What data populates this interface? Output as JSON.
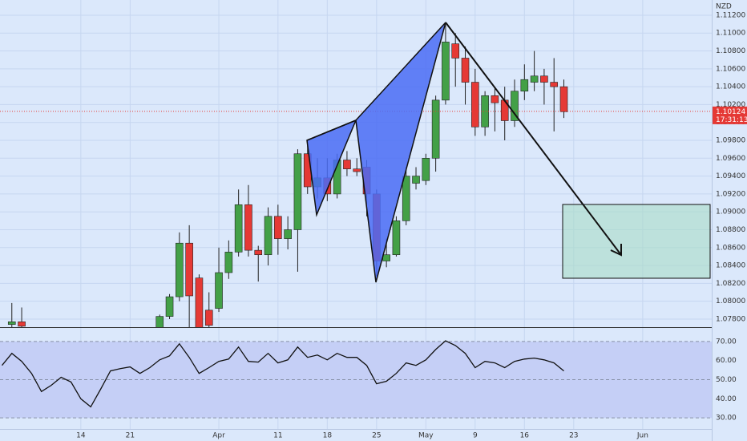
{
  "chart_data": [
    {
      "type": "candlestick",
      "currency": "NZD",
      "x": [
        -7,
        -6,
        8,
        9,
        10,
        11,
        12,
        13,
        14,
        15,
        16,
        17,
        18,
        19,
        20,
        21,
        22,
        23,
        24,
        25,
        26,
        27,
        28,
        29,
        30,
        31,
        32,
        33,
        34,
        35,
        36,
        37,
        38,
        39,
        40,
        41,
        42,
        43,
        44,
        45,
        46,
        47,
        48,
        49
      ],
      "open": [
        1.0774,
        1.0777,
        1.0765,
        1.0783,
        1.0805,
        1.0865,
        1.0826,
        1.079,
        1.0792,
        1.0832,
        1.0855,
        1.0908,
        1.0857,
        1.0852,
        1.0895,
        1.087,
        1.088,
        1.0965,
        1.0928,
        1.0938,
        1.092,
        1.0958,
        1.0948,
        1.095,
        1.092,
        1.0845,
        1.0852,
        1.089,
        1.0932,
        1.0935,
        1.096,
        1.1025,
        1.1088,
        1.1072,
        1.1045,
        1.0995,
        1.103,
        1.1025,
        1.1002,
        1.1035,
        1.1045,
        1.1052,
        1.1045,
        1.104
      ],
      "high": [
        1.0798,
        1.0793,
        1.0785,
        1.0808,
        1.0877,
        1.0885,
        1.083,
        1.081,
        1.086,
        1.0868,
        1.0925,
        1.093,
        1.0862,
        1.0905,
        1.0908,
        1.0895,
        1.097,
        1.098,
        1.096,
        1.096,
        1.0965,
        1.0968,
        1.096,
        1.0958,
        1.0925,
        1.087,
        1.0895,
        1.095,
        1.095,
        1.0965,
        1.103,
        1.111,
        1.11,
        1.1085,
        1.106,
        1.1035,
        1.104,
        1.104,
        1.1048,
        1.1065,
        1.108,
        1.106,
        1.1072,
        1.1048
      ],
      "low": [
        1.077,
        1.0768,
        1.076,
        1.078,
        1.08,
        1.077,
        1.0765,
        1.0765,
        1.0788,
        1.0825,
        1.085,
        1.085,
        1.0822,
        1.084,
        1.0852,
        1.0858,
        1.0833,
        1.092,
        1.0915,
        1.0912,
        1.0915,
        1.094,
        1.094,
        1.0895,
        1.0828,
        1.0838,
        1.085,
        1.0885,
        1.0925,
        1.093,
        1.0945,
        1.102,
        1.104,
        1.102,
        1.0985,
        1.0985,
        1.099,
        1.098,
        1.0995,
        1.1025,
        1.1035,
        1.102,
        1.099,
        1.1005
      ],
      "close": [
        1.0777,
        1.0772,
        1.0783,
        1.0805,
        1.0865,
        1.0806,
        1.077,
        1.0773,
        1.0832,
        1.0855,
        1.0908,
        1.0857,
        1.0852,
        1.0895,
        1.087,
        1.088,
        1.0965,
        1.0928,
        1.0938,
        1.092,
        1.0958,
        1.0948,
        1.0945,
        1.092,
        1.0845,
        1.0852,
        1.089,
        1.094,
        1.094,
        1.096,
        1.1025,
        1.109,
        1.1072,
        1.1045,
        1.0995,
        1.103,
        1.1022,
        1.1002,
        1.1035,
        1.1048,
        1.1052,
        1.1045,
        1.104,
        1.1012
      ],
      "up_color": "#43a047",
      "down_color": "#e53935",
      "xlim": [
        -8.2,
        64
      ],
      "ylim": [
        1.0771,
        1.1137
      ],
      "yticks": [
        {
          "value": 1.078,
          "label": "1.07800"
        },
        {
          "value": 1.08,
          "label": "1.08000"
        },
        {
          "value": 1.082,
          "label": "1.08200"
        },
        {
          "value": 1.084,
          "label": "1.08400"
        },
        {
          "value": 1.086,
          "label": "1.08600"
        },
        {
          "value": 1.088,
          "label": "1.08800"
        },
        {
          "value": 1.09,
          "label": "1.09000"
        },
        {
          "value": 1.092,
          "label": "1.09200"
        },
        {
          "value": 1.094,
          "label": "1.09400"
        },
        {
          "value": 1.096,
          "label": "1.09600"
        },
        {
          "value": 1.098,
          "label": "1.09800"
        },
        {
          "value": 1.1,
          "label": "1.10000"
        },
        {
          "value": 1.102,
          "label": "1.10200"
        },
        {
          "value": 1.104,
          "label": "1.10400"
        },
        {
          "value": 1.106,
          "label": "1.10600"
        },
        {
          "value": 1.108,
          "label": "1.10800"
        },
        {
          "value": 1.11,
          "label": "1.11000"
        },
        {
          "value": 1.112,
          "label": "1.11200"
        }
      ],
      "last_price": {
        "value": 1.10124,
        "label": "1.10124"
      },
      "countdown": "17:31:13"
    },
    {
      "type": "line",
      "color": "#111111",
      "x": [
        -8,
        -7,
        -6,
        -5,
        -4,
        -3,
        -2,
        -1,
        0,
        1,
        2,
        3,
        4,
        5,
        6,
        7,
        8,
        9,
        10,
        11,
        12,
        13,
        14,
        15,
        16,
        17,
        18,
        19,
        20,
        21,
        22,
        23,
        24,
        25,
        26,
        27,
        28,
        29,
        30,
        31,
        32,
        33,
        34,
        35,
        36,
        37,
        38,
        39,
        40,
        41,
        42,
        43,
        44,
        45,
        46,
        47,
        48,
        49
      ],
      "values": [
        57.5,
        63.8,
        59.6,
        53.3,
        43.8,
        47.1,
        51.3,
        48.8,
        40,
        35.8,
        45,
        54.6,
        55.8,
        56.7,
        53.3,
        56.3,
        60.4,
        62.5,
        68.8,
        61.7,
        53.3,
        56.3,
        59.6,
        60.8,
        67.1,
        59.6,
        59.2,
        63.8,
        58.8,
        60.4,
        67.1,
        61.7,
        62.9,
        60.4,
        63.8,
        61.7,
        61.7,
        57.5,
        47.9,
        49.2,
        53.3,
        58.8,
        57.5,
        60.4,
        65.8,
        70.4,
        67.9,
        63.8,
        56.3,
        59.6,
        58.8,
        56.3,
        59.6,
        60.8,
        61.3,
        60.4,
        58.8,
        54.6
      ],
      "xlim": [
        -8.2,
        64
      ],
      "ylim": [
        24.2,
        77.1
      ],
      "yticks": [
        {
          "value": 30,
          "label": "30.00"
        },
        {
          "value": 40,
          "label": "40.00"
        },
        {
          "value": 50,
          "label": "50.00"
        },
        {
          "value": 60,
          "label": "60.00"
        },
        {
          "value": 70,
          "label": "70.00"
        }
      ],
      "levels": [
        30,
        50,
        70
      ],
      "xticks": [
        {
          "value": 0,
          "label": "14"
        },
        {
          "value": 5,
          "label": "21"
        },
        {
          "value": 14,
          "label": "Apr"
        },
        {
          "value": 20,
          "label": "11"
        },
        {
          "value": 25,
          "label": "18"
        },
        {
          "value": 30,
          "label": "25"
        },
        {
          "value": 35,
          "label": "May"
        },
        {
          "value": 40,
          "label": "9"
        },
        {
          "value": 45,
          "label": "16"
        },
        {
          "value": 50,
          "label": "23"
        },
        {
          "value": 57,
          "label": "Jun"
        }
      ]
    }
  ]
}
